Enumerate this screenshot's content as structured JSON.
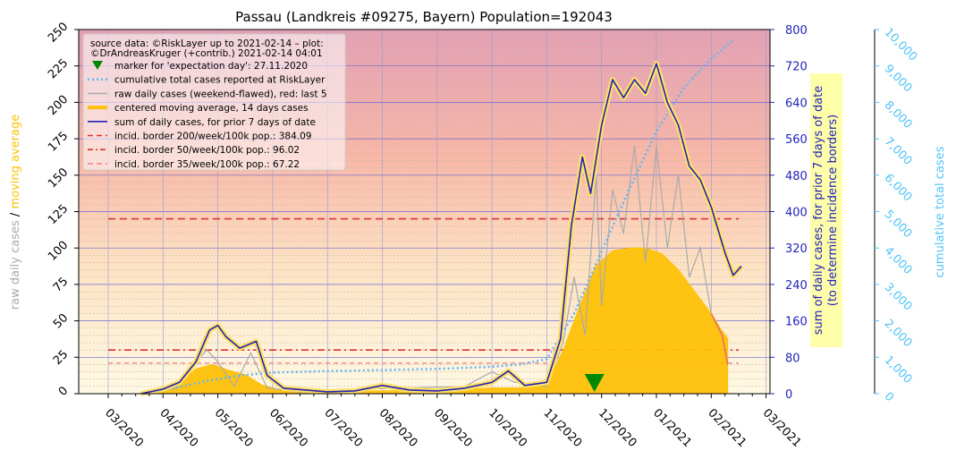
{
  "chart_data": {
    "type": "line",
    "title": "Passau (Landkreis #09275, Bayern) Population=192043",
    "x_tick_labels": [
      "03/2020",
      "04/2020",
      "05/2020",
      "06/2020",
      "07/2020",
      "08/2020",
      "09/2020",
      "10/2020",
      "11/2020",
      "12/2020",
      "01/2021",
      "02/2021",
      "03/2021"
    ],
    "left_axis": {
      "label_parts": [
        "raw daily cases",
        "  /  ",
        "moving average"
      ],
      "label_colors": [
        "#aaaaaa",
        "#000000",
        "#ffc107"
      ],
      "ylim": [
        0,
        250
      ],
      "ticks": [
        "0",
        "25",
        "50",
        "75",
        "100",
        "125",
        "150",
        "175",
        "200",
        "225",
        "250"
      ]
    },
    "right_axis_1": {
      "label_line1": "sum of daily cases, for prior 7 days of date",
      "label_line2": "(to determine incidence borders)",
      "ylim": [
        0,
        800
      ],
      "ticks": [
        "0",
        "80",
        "160",
        "240",
        "320",
        "400",
        "480",
        "560",
        "640",
        "720",
        "800"
      ],
      "color": "#2222bb"
    },
    "right_axis_2": {
      "label": "cumulative total cases",
      "ylim": [
        0,
        10000
      ],
      "ticks": [
        "0",
        "1,000",
        "2,000",
        "3,000",
        "4,000",
        "5,000",
        "6,000",
        "7,000",
        "8,000",
        "9,000",
        "10,000"
      ],
      "color": "#4fc3f7"
    },
    "legend": {
      "placement": "top-left",
      "source_line1": "source data: ©RiskLayer up to 2021-02-14 – plot:",
      "source_line2": "©DrAndreasKruger (+contrib.) 2021-02-14 04:01",
      "entries": [
        {
          "label": "marker for 'expectation day': 27.11.2020",
          "color": "#008800",
          "kind": "marker"
        },
        {
          "label": "cumulative total cases reported at RiskLayer",
          "color": "#64b5f6",
          "kind": "dotted"
        },
        {
          "label": "raw daily cases (weekend-flawed), red: last 5",
          "color": "#aaaaaa",
          "kind": "line"
        },
        {
          "label": "centered moving average, 14 days cases",
          "color": "#ffc107",
          "kind": "thick"
        },
        {
          "label": "sum of daily cases, for prior 7 days of date",
          "color": "#2222bb",
          "kind": "line"
        },
        {
          "label": "incid. border 200/week/100k pop.: 384.09",
          "color": "#dd3333",
          "kind": "dashed"
        },
        {
          "label": "incid. border 50/week/100k pop.: 96.02",
          "color": "#dd3333",
          "kind": "dashdot"
        },
        {
          "label": "incid. border 35/week/100k pop.: 67.22",
          "color": "#ee8888",
          "kind": "dashed"
        }
      ]
    },
    "incidence_borders_weekly_sum": [
      384.09,
      96.02,
      67.22
    ],
    "expectation_day_month_pos": 8.87,
    "series": [
      {
        "name": "sum of daily cases, for prior 7 days of date",
        "axis": "right_axis_1",
        "points": [
          [
            0.6,
            0
          ],
          [
            1.0,
            10
          ],
          [
            1.3,
            25
          ],
          [
            1.6,
            70
          ],
          [
            1.85,
            140
          ],
          [
            2.0,
            150
          ],
          [
            2.15,
            125
          ],
          [
            2.4,
            100
          ],
          [
            2.7,
            115
          ],
          [
            2.9,
            40
          ],
          [
            3.2,
            12
          ],
          [
            3.6,
            8
          ],
          [
            4.0,
            4
          ],
          [
            4.5,
            6
          ],
          [
            5.0,
            18
          ],
          [
            5.5,
            8
          ],
          [
            6.0,
            6
          ],
          [
            6.5,
            12
          ],
          [
            7.0,
            25
          ],
          [
            7.3,
            50
          ],
          [
            7.6,
            18
          ],
          [
            8.0,
            25
          ],
          [
            8.25,
            120
          ],
          [
            8.45,
            370
          ],
          [
            8.65,
            520
          ],
          [
            8.8,
            440
          ],
          [
            9.0,
            590
          ],
          [
            9.2,
            690
          ],
          [
            9.4,
            650
          ],
          [
            9.6,
            690
          ],
          [
            9.8,
            660
          ],
          [
            10.0,
            725
          ],
          [
            10.2,
            640
          ],
          [
            10.4,
            590
          ],
          [
            10.6,
            500
          ],
          [
            10.8,
            470
          ],
          [
            11.0,
            410
          ],
          [
            11.25,
            310
          ],
          [
            11.4,
            260
          ],
          [
            11.55,
            280
          ]
        ]
      },
      {
        "name": "centered moving average, 14 days cases",
        "axis": "left_axis",
        "points": [
          [
            0.6,
            0
          ],
          [
            1.0,
            2
          ],
          [
            1.3,
            8
          ],
          [
            1.6,
            17
          ],
          [
            1.9,
            20
          ],
          [
            2.2,
            16
          ],
          [
            2.5,
            13
          ],
          [
            2.8,
            6
          ],
          [
            3.2,
            2
          ],
          [
            4.0,
            1
          ],
          [
            5.0,
            2
          ],
          [
            6.0,
            2
          ],
          [
            7.0,
            4
          ],
          [
            7.5,
            4
          ],
          [
            8.0,
            6
          ],
          [
            8.3,
            30
          ],
          [
            8.6,
            60
          ],
          [
            8.9,
            88
          ],
          [
            9.2,
            98
          ],
          [
            9.5,
            100
          ],
          [
            9.8,
            100
          ],
          [
            10.1,
            96
          ],
          [
            10.4,
            85
          ],
          [
            10.7,
            70
          ],
          [
            11.0,
            55
          ],
          [
            11.2,
            43
          ],
          [
            11.3,
            38
          ]
        ]
      },
      {
        "name": "cumulative total cases reported at RiskLayer",
        "axis": "right_axis_2",
        "points": [
          [
            0.6,
            0
          ],
          [
            1.2,
            150
          ],
          [
            1.8,
            350
          ],
          [
            2.4,
            500
          ],
          [
            3.0,
            580
          ],
          [
            4.0,
            620
          ],
          [
            5.0,
            650
          ],
          [
            6.0,
            680
          ],
          [
            7.0,
            740
          ],
          [
            7.5,
            800
          ],
          [
            8.0,
            950
          ],
          [
            8.5,
            2200
          ],
          [
            9.0,
            3900
          ],
          [
            9.5,
            5600
          ],
          [
            10.0,
            7200
          ],
          [
            10.5,
            8400
          ],
          [
            11.0,
            9200
          ],
          [
            11.4,
            9700
          ]
        ]
      },
      {
        "name": "raw daily cases (weekend-flawed), red: last 5",
        "axis": "left_axis",
        "points": [
          [
            1.2,
            3
          ],
          [
            1.5,
            18
          ],
          [
            1.8,
            30
          ],
          [
            2.0,
            22
          ],
          [
            2.3,
            5
          ],
          [
            2.6,
            28
          ],
          [
            2.9,
            4
          ],
          [
            3.5,
            1
          ],
          [
            4.5,
            3
          ],
          [
            5.5,
            4
          ],
          [
            6.5,
            5
          ],
          [
            7.0,
            15
          ],
          [
            7.4,
            8
          ],
          [
            8.0,
            5
          ],
          [
            8.3,
            35
          ],
          [
            8.5,
            80
          ],
          [
            8.7,
            40
          ],
          [
            8.9,
            150
          ],
          [
            9.0,
            60
          ],
          [
            9.2,
            140
          ],
          [
            9.4,
            110
          ],
          [
            9.6,
            170
          ],
          [
            9.8,
            90
          ],
          [
            10.0,
            170
          ],
          [
            10.2,
            100
          ],
          [
            10.4,
            150
          ],
          [
            10.6,
            80
          ],
          [
            10.8,
            100
          ],
          [
            11.0,
            55
          ],
          [
            11.2,
            40
          ],
          [
            11.3,
            20
          ]
        ]
      }
    ],
    "grid": true
  }
}
